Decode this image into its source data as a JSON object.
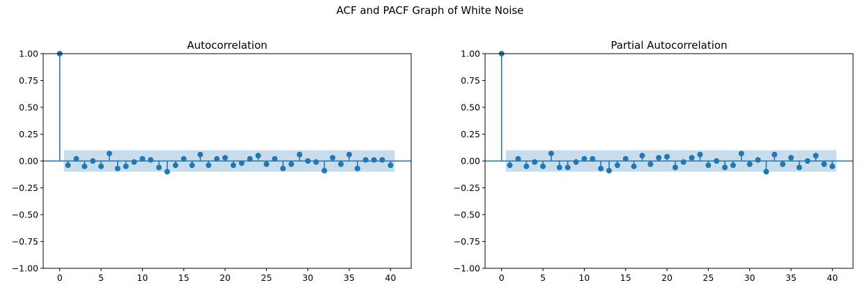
{
  "figure": {
    "suptitle": "ACF and PACF Graph of White Noise"
  },
  "chart_data": [
    {
      "type": "stem",
      "title": "Autocorrelation",
      "xlabel": "",
      "ylabel": "",
      "xlim": [
        -2,
        42.5
      ],
      "ylim": [
        -1.0,
        1.0
      ],
      "xticks": [
        0,
        5,
        10,
        15,
        20,
        25,
        30,
        35,
        40
      ],
      "yticks": [
        -1.0,
        -0.75,
        -0.5,
        -0.25,
        0.0,
        0.25,
        0.5,
        0.75,
        1.0
      ],
      "ytick_labels": [
        "−1.00",
        "−0.75",
        "−0.50",
        "−0.25",
        "0.00",
        "0.25",
        "0.50",
        "0.75",
        "1.00"
      ],
      "confidence_band": [
        -0.1,
        0.1
      ],
      "lags": [
        0,
        1,
        2,
        3,
        4,
        5,
        6,
        7,
        8,
        9,
        10,
        11,
        12,
        13,
        14,
        15,
        16,
        17,
        18,
        19,
        20,
        21,
        22,
        23,
        24,
        25,
        26,
        27,
        28,
        29,
        30,
        31,
        32,
        33,
        34,
        35,
        36,
        37,
        38,
        39,
        40
      ],
      "values": [
        1.0,
        -0.04,
        0.02,
        -0.05,
        0.0,
        -0.05,
        0.07,
        -0.07,
        -0.05,
        -0.01,
        0.02,
        0.01,
        -0.06,
        -0.1,
        -0.04,
        0.02,
        -0.04,
        0.06,
        -0.04,
        0.02,
        0.03,
        -0.04,
        -0.02,
        0.02,
        0.05,
        -0.03,
        0.02,
        -0.07,
        -0.03,
        0.06,
        0.0,
        -0.01,
        -0.09,
        0.03,
        -0.03,
        0.06,
        -0.07,
        0.01,
        0.01,
        0.01,
        -0.04
      ],
      "color": "#1f77b4",
      "band_color": "#1f77b4"
    },
    {
      "type": "stem",
      "title": "Partial Autocorrelation",
      "xlabel": "",
      "ylabel": "",
      "xlim": [
        -2,
        42.5
      ],
      "ylim": [
        -1.0,
        1.0
      ],
      "xticks": [
        0,
        5,
        10,
        15,
        20,
        25,
        30,
        35,
        40
      ],
      "yticks": [
        -1.0,
        -0.75,
        -0.5,
        -0.25,
        0.0,
        0.25,
        0.5,
        0.75,
        1.0
      ],
      "ytick_labels": [
        "−1.00",
        "−0.75",
        "−0.50",
        "−0.25",
        "0.00",
        "0.25",
        "0.50",
        "0.75",
        "1.00"
      ],
      "confidence_band": [
        -0.1,
        0.1
      ],
      "lags": [
        0,
        1,
        2,
        3,
        4,
        5,
        6,
        7,
        8,
        9,
        10,
        11,
        12,
        13,
        14,
        15,
        16,
        17,
        18,
        19,
        20,
        21,
        22,
        23,
        24,
        25,
        26,
        27,
        28,
        29,
        30,
        31,
        32,
        33,
        34,
        35,
        36,
        37,
        38,
        39,
        40
      ],
      "values": [
        1.0,
        -0.04,
        0.02,
        -0.05,
        -0.01,
        -0.05,
        0.07,
        -0.06,
        -0.06,
        -0.01,
        0.02,
        0.02,
        -0.07,
        -0.09,
        -0.04,
        0.02,
        -0.05,
        0.05,
        -0.03,
        0.03,
        0.04,
        -0.06,
        -0.01,
        0.03,
        0.06,
        -0.04,
        0.0,
        -0.06,
        -0.04,
        0.07,
        -0.03,
        0.01,
        -0.1,
        0.06,
        -0.03,
        0.03,
        -0.06,
        0.0,
        0.05,
        -0.03,
        -0.05
      ],
      "color": "#1f77b4",
      "band_color": "#1f77b4"
    }
  ]
}
